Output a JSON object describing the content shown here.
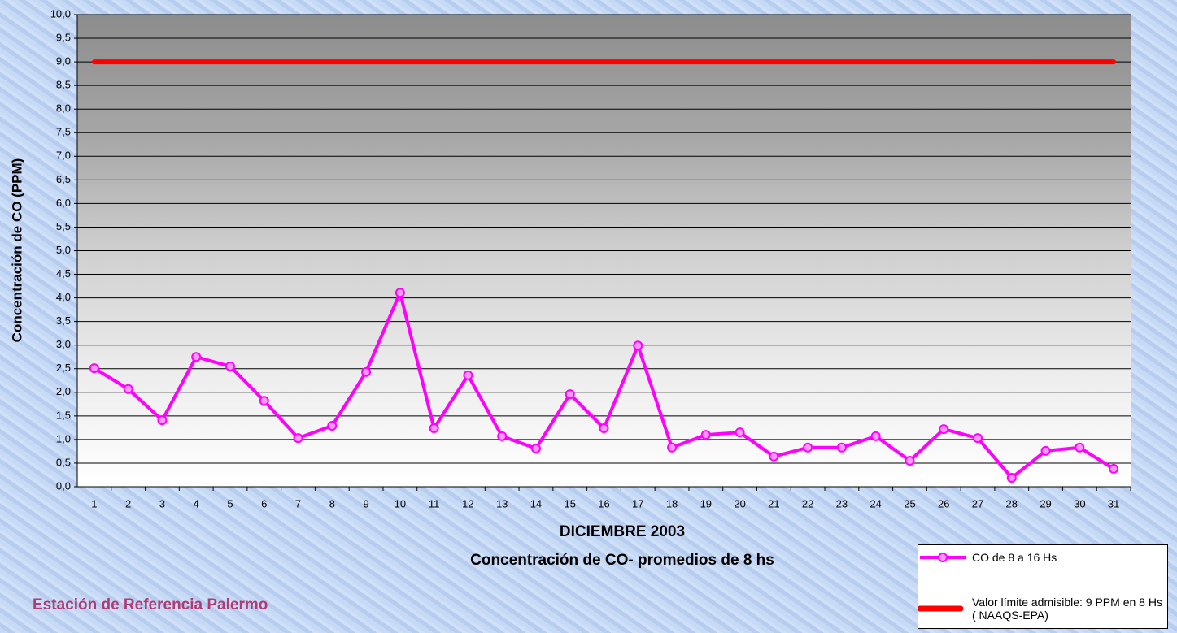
{
  "chart_data": {
    "type": "line",
    "xlabel": "DICIEMBRE 2003",
    "subtitle": "Concentración de CO- promedios de 8 hs",
    "ylabel": "Concentración de CO (PPM)",
    "annotation": "Estación de Referencia Palermo",
    "categories": [
      "1",
      "2",
      "3",
      "4",
      "5",
      "6",
      "7",
      "8",
      "9",
      "10",
      "11",
      "12",
      "13",
      "14",
      "15",
      "16",
      "17",
      "18",
      "19",
      "20",
      "21",
      "22",
      "23",
      "24",
      "25",
      "26",
      "27",
      "28",
      "29",
      "30",
      "31"
    ],
    "series": [
      {
        "name": "CO de 8 a 16 Hs",
        "color": "#ff00ff",
        "markers": true,
        "values": [
          2.51,
          2.07,
          1.41,
          2.75,
          2.55,
          1.82,
          1.03,
          1.29,
          2.43,
          4.11,
          1.24,
          2.36,
          1.07,
          0.81,
          1.96,
          1.24,
          2.99,
          0.83,
          1.1,
          1.15,
          0.64,
          0.83,
          0.83,
          1.07,
          0.55,
          1.22,
          1.03,
          0.19,
          0.76,
          0.83,
          0.38
        ]
      },
      {
        "name": "Valor límite admisible: 9 PPM en 8 Hs ( NAAQS-EPA)",
        "color": "#ff0000",
        "markers": false,
        "values": [
          9,
          9,
          9,
          9,
          9,
          9,
          9,
          9,
          9,
          9,
          9,
          9,
          9,
          9,
          9,
          9,
          9,
          9,
          9,
          9,
          9,
          9,
          9,
          9,
          9,
          9,
          9,
          9,
          9,
          9,
          9
        ]
      }
    ],
    "ylim": [
      0,
      10
    ],
    "yticks": [
      {
        "value": 0,
        "label": "0,0"
      },
      {
        "value": 0.5,
        "label": "0,5"
      },
      {
        "value": 1,
        "label": "1,0"
      },
      {
        "value": 1.5,
        "label": "1,5"
      },
      {
        "value": 2,
        "label": "2,0"
      },
      {
        "value": 2.5,
        "label": "2,5"
      },
      {
        "value": 3,
        "label": "3,0"
      },
      {
        "value": 3.5,
        "label": "3,5"
      },
      {
        "value": 4,
        "label": "4,0"
      },
      {
        "value": 4.5,
        "label": "4,5"
      },
      {
        "value": 5,
        "label": "5,0"
      },
      {
        "value": 5.5,
        "label": "5,5"
      },
      {
        "value": 6,
        "label": "6,0"
      },
      {
        "value": 6.5,
        "label": "6,5"
      },
      {
        "value": 7,
        "label": "7,0"
      },
      {
        "value": 7.5,
        "label": "7,5"
      },
      {
        "value": 8,
        "label": "8,0"
      },
      {
        "value": 8.5,
        "label": "8,5"
      },
      {
        "value": 9,
        "label": "9,0"
      },
      {
        "value": 9.5,
        "label": "9,5"
      },
      {
        "value": 10,
        "label": "10,0"
      }
    ],
    "grid": true
  }
}
